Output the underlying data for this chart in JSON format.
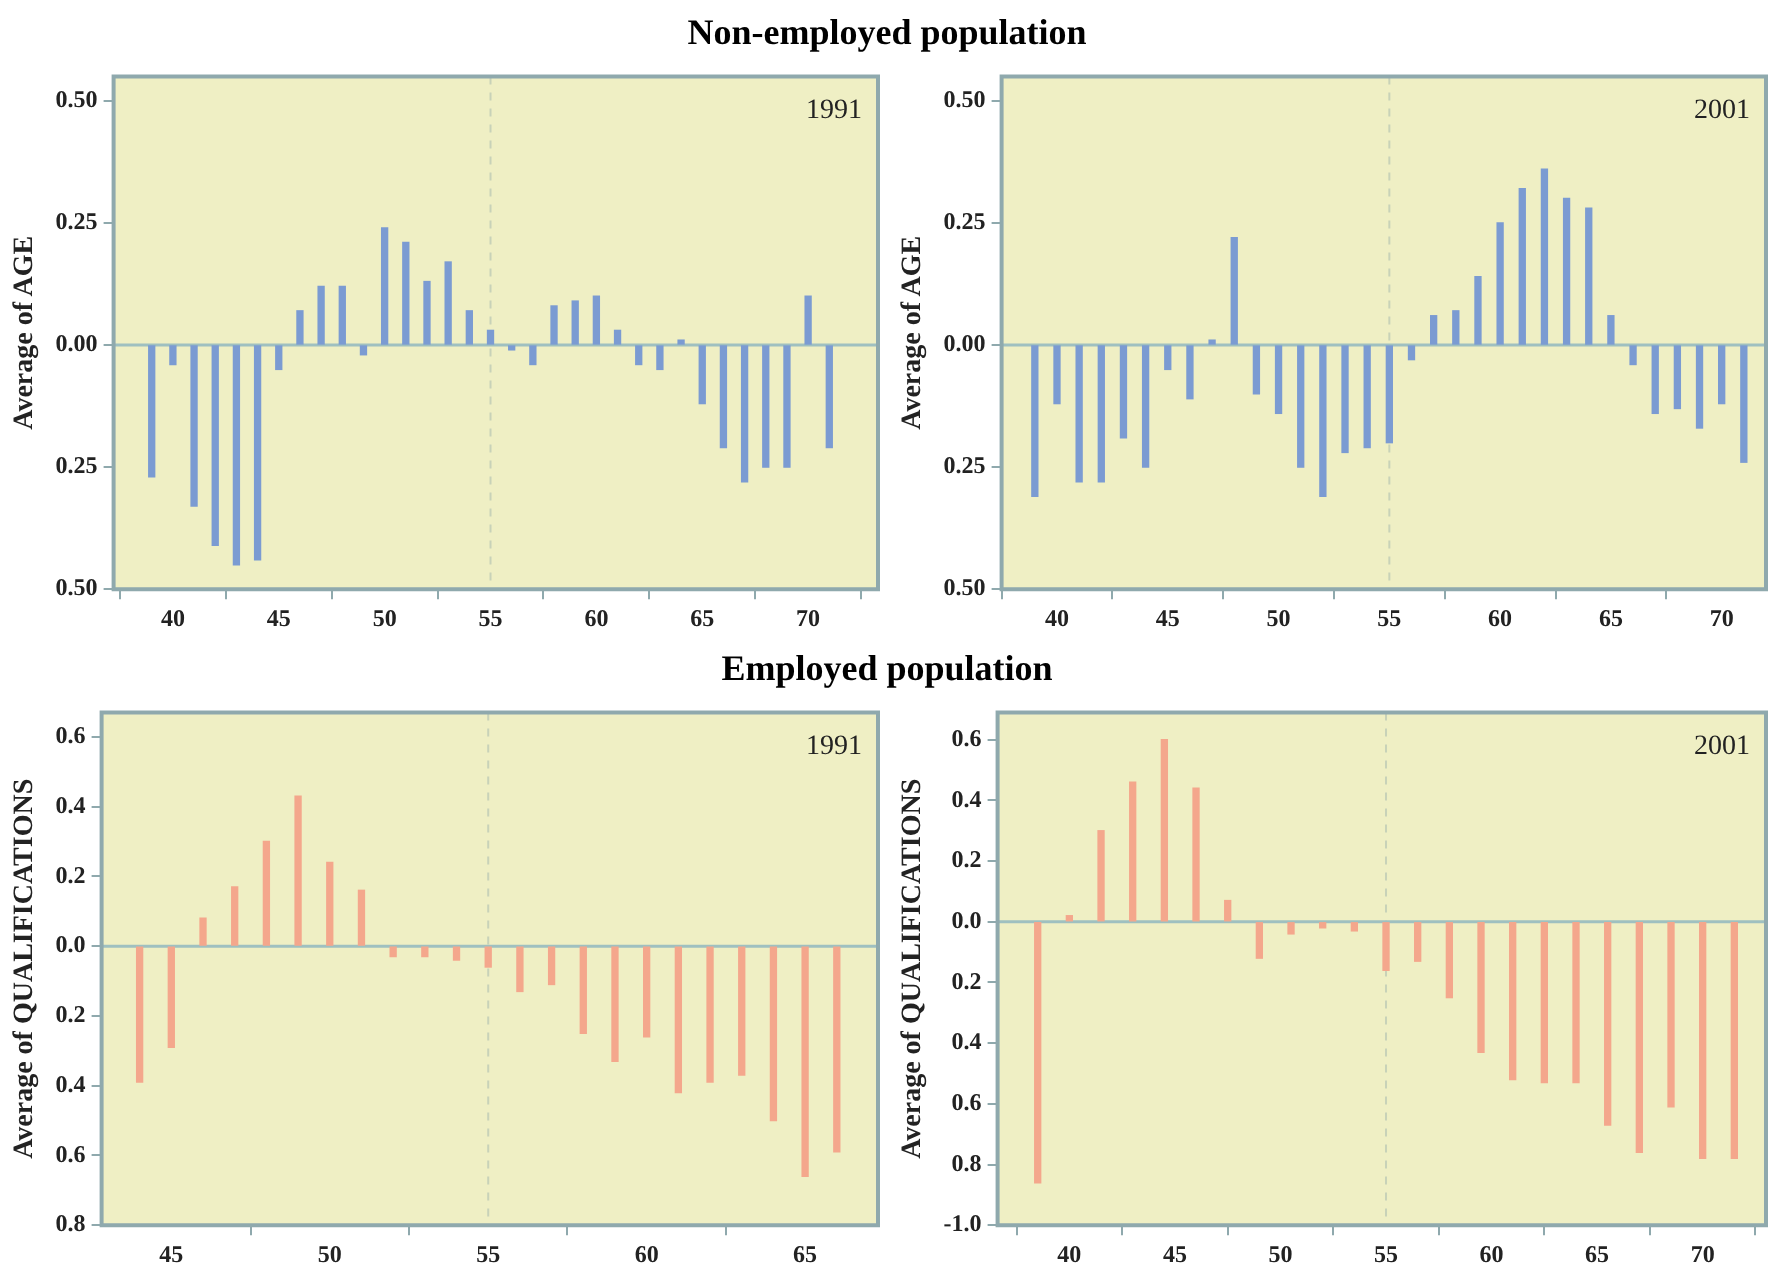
{
  "chart_data": [
    {
      "type": "bar",
      "title": "Non-employed population",
      "ylabel": "Average of AGE",
      "annotations": [
        "1991"
      ],
      "color": "#7b9bd2",
      "x": [
        39,
        40,
        41,
        42,
        43,
        44,
        45,
        46,
        47,
        48,
        49,
        50,
        51,
        52,
        53,
        54,
        55,
        56,
        57,
        58,
        59,
        60,
        61,
        62,
        63,
        64,
        65,
        66,
        67,
        68,
        69,
        70,
        71
      ],
      "values": [
        -0.27,
        -0.04,
        -0.33,
        -0.41,
        -0.45,
        -0.44,
        -0.05,
        0.07,
        0.12,
        0.12,
        -0.02,
        0.24,
        0.21,
        0.13,
        0.17,
        0.07,
        0.03,
        -0.01,
        -0.04,
        0.08,
        0.09,
        0.1,
        0.03,
        -0.04,
        -0.05,
        0.01,
        -0.12,
        -0.21,
        -0.28,
        -0.25,
        -0.25,
        0.1,
        -0.21
      ],
      "xlim": [
        37.2,
        73.3
      ],
      "xticks": [
        40,
        45,
        50,
        55,
        60,
        65,
        70
      ],
      "ylim": [
        -0.5,
        0.55
      ],
      "yticks": [
        {
          "value": -0.5,
          "label": "0.50"
        },
        {
          "value": -0.25,
          "label": "0.25"
        },
        {
          "value": 0,
          "label": "0.00"
        },
        {
          "value": 0.25,
          "label": "0.25"
        },
        {
          "value": 0.5,
          "label": "0.50"
        }
      ],
      "ref_lines": [
        {
          "axis": "x",
          "value": 55,
          "line_style": "dashed"
        },
        {
          "axis": "y",
          "value": 0,
          "line_style": "solid"
        }
      ]
    },
    {
      "type": "bar",
      "ylabel": "Average of AGE",
      "annotations": [
        "2001"
      ],
      "color": "#7b9bd2",
      "x": [
        39,
        40,
        41,
        42,
        43,
        44,
        45,
        46,
        47,
        48,
        49,
        50,
        51,
        52,
        53,
        54,
        55,
        56,
        57,
        58,
        59,
        60,
        61,
        62,
        63,
        64,
        65,
        66,
        67,
        68,
        69,
        70,
        71
      ],
      "values": [
        -0.31,
        -0.12,
        -0.28,
        -0.28,
        -0.19,
        -0.25,
        -0.05,
        -0.11,
        0.01,
        0.22,
        -0.1,
        -0.14,
        -0.25,
        -0.31,
        -0.22,
        -0.21,
        -0.2,
        -0.03,
        0.06,
        0.07,
        0.14,
        0.25,
        0.32,
        0.36,
        0.3,
        0.28,
        0.06,
        -0.04,
        -0.14,
        -0.13,
        -0.17,
        -0.12,
        -0.24
      ],
      "xlim": [
        37.5,
        72
      ],
      "xticks": [
        40,
        45,
        50,
        55,
        60,
        65,
        70
      ],
      "ylim": [
        -0.5,
        0.55
      ],
      "yticks": [
        {
          "value": -0.5,
          "label": "0.50"
        },
        {
          "value": -0.25,
          "label": "0.25"
        },
        {
          "value": 0,
          "label": "0.00"
        },
        {
          "value": 0.25,
          "label": "0.25"
        },
        {
          "value": 0.5,
          "label": "0.50"
        }
      ],
      "ref_lines": [
        {
          "axis": "x",
          "value": 55,
          "line_style": "dashed"
        },
        {
          "axis": "y",
          "value": 0,
          "line_style": "solid"
        }
      ]
    },
    {
      "type": "bar",
      "title": "Employed population",
      "ylabel": "Average of QUALIFICATIONS",
      "annotations": [
        "1991"
      ],
      "color": "#f4a78c",
      "x": [
        44,
        45,
        46,
        47,
        48,
        49,
        50,
        51,
        52,
        53,
        54,
        55,
        56,
        57,
        58,
        59,
        60,
        61,
        62,
        63,
        64,
        65,
        66
      ],
      "values": [
        -0.39,
        -0.29,
        0.08,
        0.17,
        0.3,
        0.43,
        0.24,
        0.16,
        -0.03,
        -0.03,
        -0.04,
        -0.06,
        -0.13,
        -0.11,
        -0.25,
        -0.33,
        -0.26,
        -0.42,
        -0.39,
        -0.37,
        -0.5,
        -0.66,
        -0.59
      ],
      "xlim": [
        42.8,
        67.3
      ],
      "xticks": [
        45,
        50,
        55,
        60,
        65
      ],
      "ylim": [
        -0.8,
        0.67
      ],
      "yticks": [
        {
          "value": -0.8,
          "label": "0.8"
        },
        {
          "value": -0.6,
          "label": "0.6"
        },
        {
          "value": -0.4,
          "label": "0.4"
        },
        {
          "value": -0.2,
          "label": "0.2"
        },
        {
          "value": 0,
          "label": "0.0"
        },
        0.2,
        0.4,
        0.6
      ],
      "ref_lines": [
        {
          "axis": "x",
          "value": 55,
          "line_style": "dashed"
        },
        {
          "axis": "y",
          "value": 0,
          "line_style": "solid"
        }
      ]
    },
    {
      "type": "bar",
      "ylabel": "Average of QUALIFICATIONS",
      "annotations": [
        "2001"
      ],
      "color": "#f4a78c",
      "x": [
        38.5,
        40,
        41.5,
        43,
        44.5,
        46,
        47.5,
        49,
        50.5,
        52,
        53.5,
        55,
        56.5,
        58,
        59.5,
        61,
        62.5,
        64,
        65.5,
        67,
        68.5,
        70,
        71.5
      ],
      "values": [
        -0.86,
        0.02,
        0.3,
        0.46,
        0.6,
        0.44,
        0.07,
        -0.12,
        -0.04,
        -0.02,
        -0.03,
        -0.16,
        -0.13,
        -0.25,
        -0.43,
        -0.52,
        -0.53,
        -0.53,
        -0.67,
        -0.76,
        -0.61,
        -0.78,
        -0.78
      ],
      "xlim": [
        36.6,
        73
      ],
      "xticks": [
        40,
        45,
        50,
        55,
        60,
        65,
        70
      ],
      "ylim": [
        -1.0,
        0.69
      ],
      "yticks": [
        {
          "value": -1,
          "label": "-1.0"
        },
        {
          "value": -0.8,
          "label": "0.8"
        },
        {
          "value": -0.6,
          "label": "0.6"
        },
        {
          "value": -0.4,
          "label": "0.4"
        },
        {
          "value": -0.2,
          "label": "0.2"
        },
        {
          "value": 0,
          "label": "0.0"
        },
        0.2,
        0.4,
        0.6
      ],
      "ref_lines": [
        {
          "axis": "x",
          "value": 55,
          "line_style": "dashed"
        },
        {
          "axis": "y",
          "value": 0,
          "line_style": "solid"
        }
      ]
    }
  ]
}
